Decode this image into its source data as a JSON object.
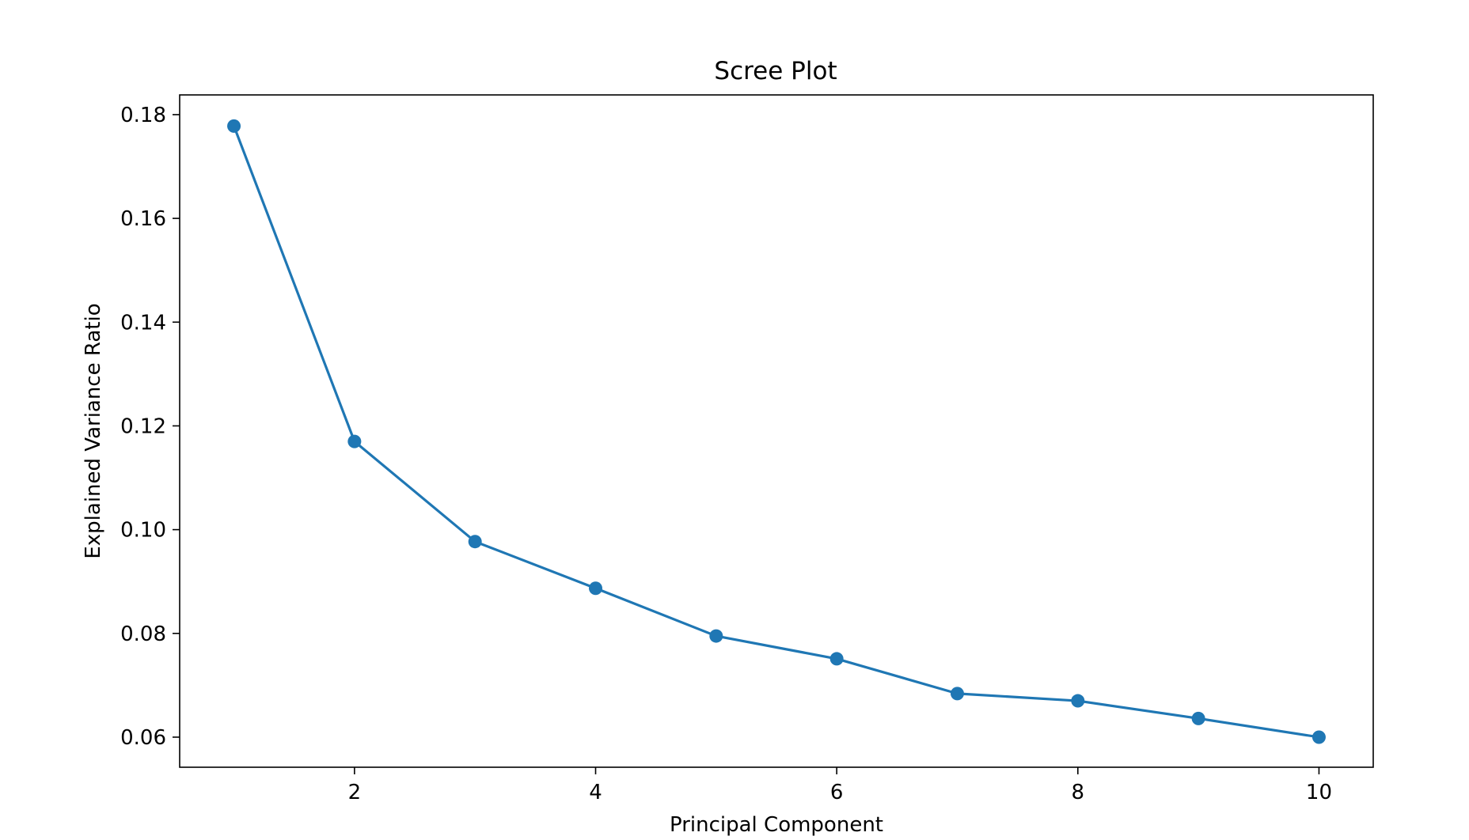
{
  "chart_data": {
    "type": "line",
    "title": "Scree Plot",
    "xlabel": "Principal Component",
    "ylabel": "Explained Variance Ratio",
    "x": [
      1,
      2,
      3,
      4,
      5,
      6,
      7,
      8,
      9,
      10
    ],
    "series": [
      {
        "values": [
          0.1778,
          0.117,
          0.0977,
          0.0887,
          0.0795,
          0.0751,
          0.0684,
          0.067,
          0.0636,
          0.06
        ],
        "color": "#1f77b4",
        "marker": "circle"
      }
    ],
    "xlim": [
      0.55,
      10.45
    ],
    "ylim": [
      0.0542,
      0.1838
    ],
    "xticks": [
      2,
      4,
      6,
      8,
      10
    ],
    "yticks": [
      0.06,
      0.08,
      0.1,
      0.12,
      0.14,
      0.16,
      0.18
    ],
    "xtick_labels": [
      "2",
      "4",
      "6",
      "8",
      "10"
    ],
    "ytick_labels": [
      "0.06",
      "0.08",
      "0.10",
      "0.12",
      "0.14",
      "0.16",
      "0.18"
    ],
    "grid": false,
    "legend": "none"
  }
}
